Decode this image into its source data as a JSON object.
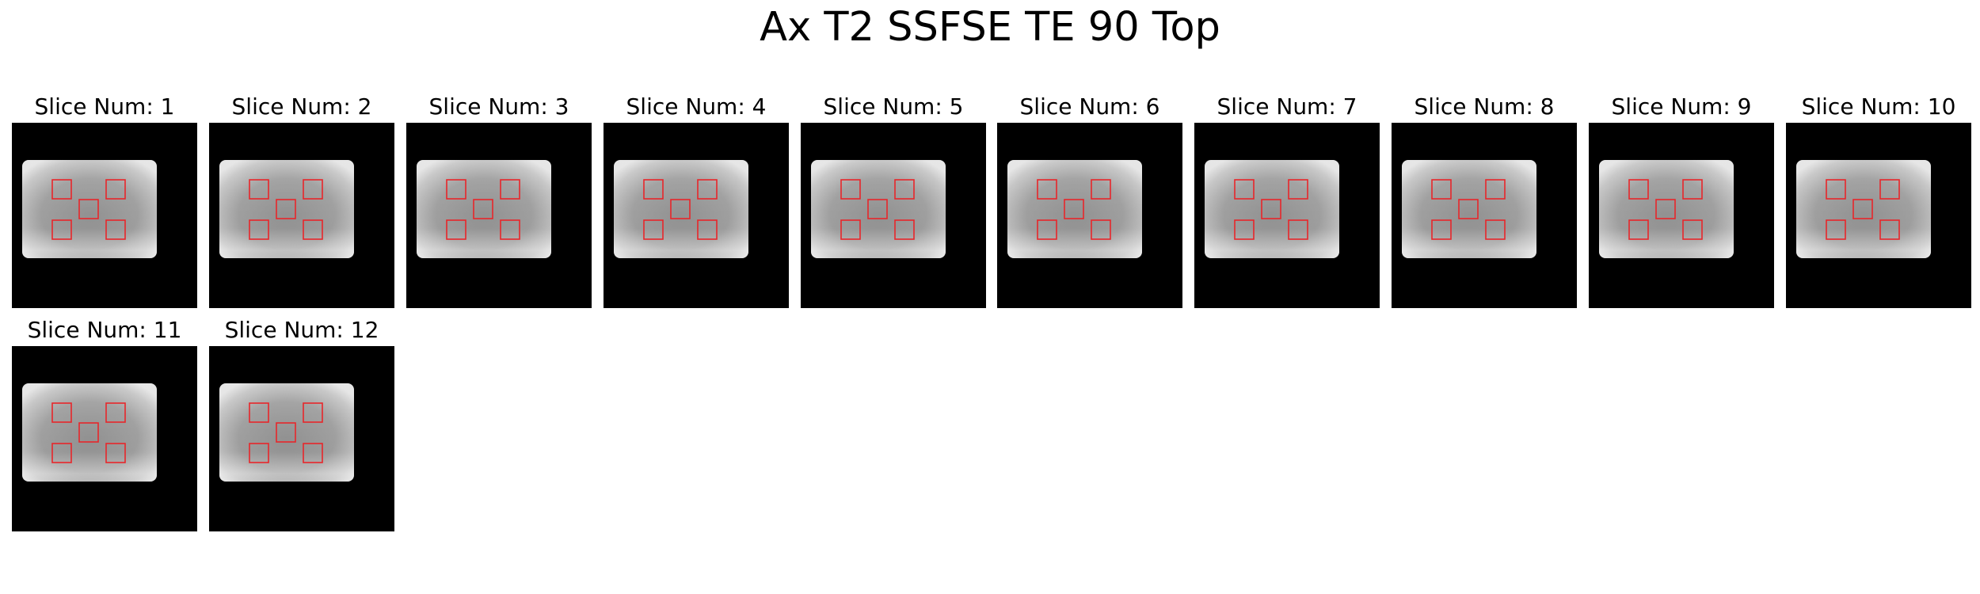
{
  "figure": {
    "title": "Ax T2 SSFSE TE 90 Top"
  },
  "slices": [
    {
      "label": "Slice Num: 1",
      "roi_color": "#e8262a"
    },
    {
      "label": "Slice Num: 2",
      "roi_color": "#e8262a"
    },
    {
      "label": "Slice Num: 3",
      "roi_color": "#e8262a"
    },
    {
      "label": "Slice Num: 4",
      "roi_color": "#e8262a"
    },
    {
      "label": "Slice Num: 5",
      "roi_color": "#e8262a"
    },
    {
      "label": "Slice Num: 6",
      "roi_color": "#e8262a"
    },
    {
      "label": "Slice Num: 7",
      "roi_color": "#e8262a"
    },
    {
      "label": "Slice Num: 8",
      "roi_color": "#e8262a"
    },
    {
      "label": "Slice Num: 9",
      "roi_color": "#e8262a"
    },
    {
      "label": "Slice Num: 10",
      "roi_color": "#e8262a"
    },
    {
      "label": "Slice Num: 11",
      "roi_color": "#e8262a"
    },
    {
      "label": "Slice Num: 12",
      "roi_color": "#e8262a"
    }
  ]
}
